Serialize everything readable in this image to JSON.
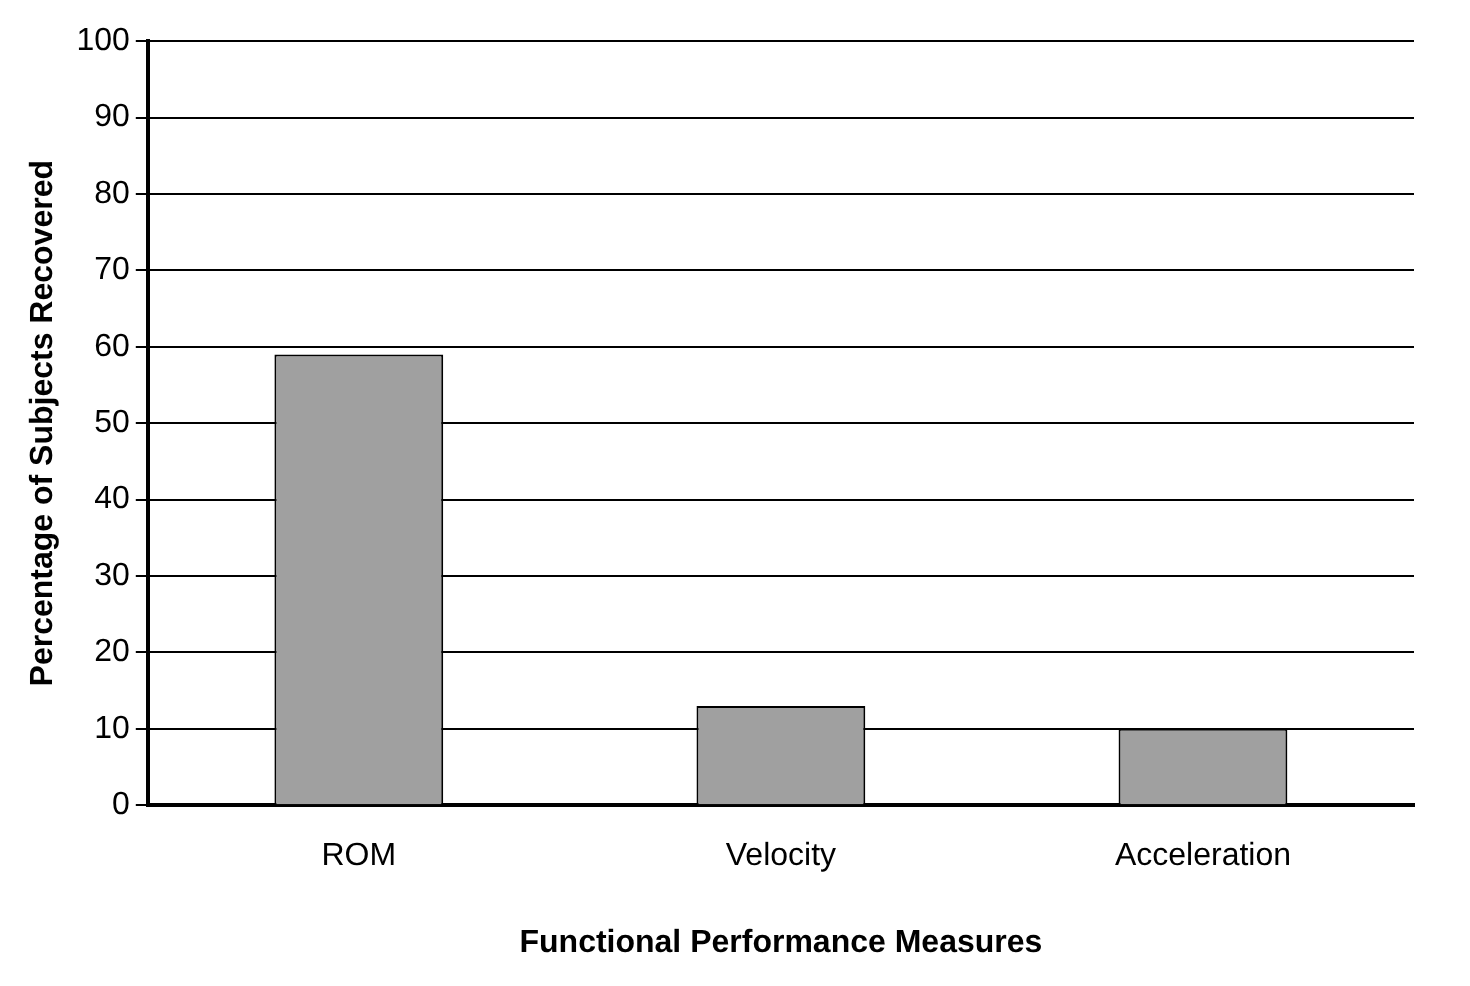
{
  "chart_data": {
    "type": "bar",
    "xlabel": "Functional Performance Measures",
    "ylabel": "Percentage of Subjects Recovered",
    "categories": [
      "ROM",
      "Velocity",
      "Acceleration"
    ],
    "values": [
      59,
      13,
      10
    ],
    "color": "#a0a0a0",
    "ylim": [
      0,
      100
    ],
    "yticks": [
      0,
      10,
      20,
      30,
      40,
      50,
      60,
      70,
      80,
      90,
      100
    ],
    "grid": "y",
    "legend": false
  }
}
